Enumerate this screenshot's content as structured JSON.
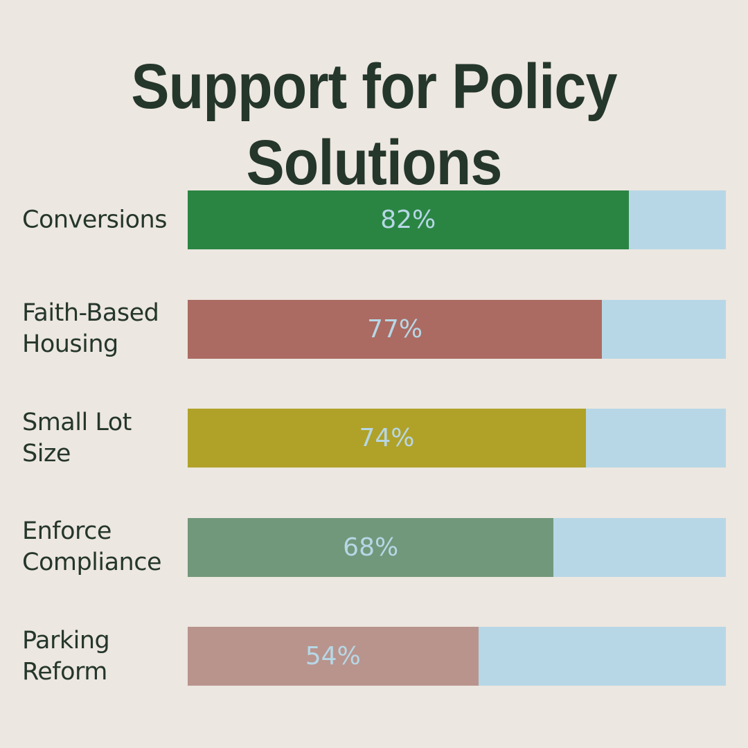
{
  "title": "Support for Policy Solutions",
  "colors": {
    "background": "#ece7e0",
    "track": "#b7d7e6",
    "title": "#25362b",
    "label": "#25362b",
    "value_text": "#b7d7e6"
  },
  "chart_data": {
    "type": "bar",
    "orientation": "horizontal",
    "title": "Support for Policy Solutions",
    "categories": [
      "Conversions",
      "Faith-Based\nHousing",
      "Small Lot Size",
      "Enforce\nCompliance",
      "Parking\nReform"
    ],
    "values": [
      82,
      77,
      74,
      68,
      54
    ],
    "value_labels": [
      "82%",
      "77%",
      "74%",
      "68%",
      "54%"
    ],
    "bar_colors": [
      "#2a8543",
      "#ab6b62",
      "#b0a228",
      "#71987b",
      "#b8948d"
    ],
    "xlim": [
      0,
      100
    ],
    "unit": "%",
    "grid": false,
    "legend": "none"
  }
}
